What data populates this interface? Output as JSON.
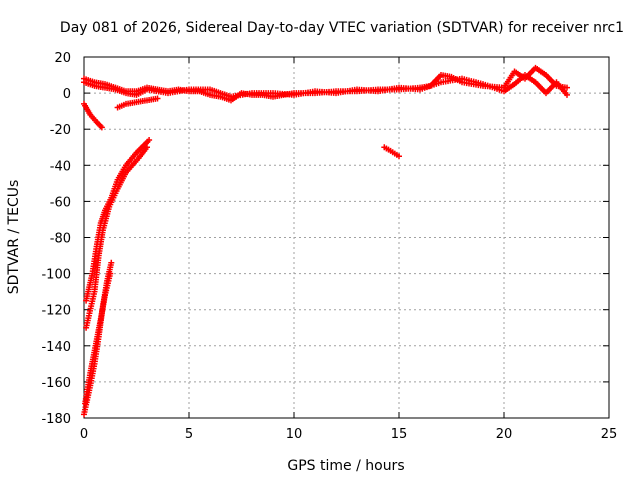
{
  "chart_data": {
    "type": "scatter",
    "title": "Day 081 of 2026, Sidereal Day-to-day VTEC variation (SDTVAR) for receiver nrc1",
    "xlabel": "GPS time / hours",
    "ylabel": "SDTVAR / TECUs",
    "xlim": [
      0,
      25
    ],
    "ylim": [
      -180,
      20
    ],
    "xticks": [
      0,
      5,
      10,
      15,
      20,
      25
    ],
    "yticks": [
      -180,
      -160,
      -140,
      -120,
      -100,
      -80,
      -60,
      -40,
      -20,
      0,
      20
    ],
    "grid": true,
    "marker": "plus",
    "series": [
      {
        "name": "SDTVAR",
        "color": "#ff0000",
        "segments": [
          [
            [
              0,
              8
            ],
            [
              0.5,
              6
            ],
            [
              1,
              5
            ],
            [
              1.5,
              3
            ],
            [
              2,
              1
            ],
            [
              2.5,
              1
            ],
            [
              3,
              3
            ],
            [
              3.5,
              2
            ],
            [
              4,
              1
            ],
            [
              4.5,
              2
            ],
            [
              5,
              1
            ],
            [
              5.5,
              1
            ],
            [
              6,
              -1
            ],
            [
              6.5,
              -2
            ],
            [
              7,
              -4
            ],
            [
              7.5,
              0
            ],
            [
              8,
              -1
            ],
            [
              8.5,
              -1
            ],
            [
              9,
              -2
            ],
            [
              9.5,
              -1
            ],
            [
              10,
              0
            ],
            [
              11,
              0
            ],
            [
              12,
              1
            ],
            [
              13,
              1
            ],
            [
              14,
              2
            ],
            [
              15,
              2
            ],
            [
              16,
              3
            ],
            [
              16.5,
              4
            ],
            [
              17,
              10
            ],
            [
              17.5,
              9
            ],
            [
              18,
              6
            ],
            [
              19,
              4
            ],
            [
              20,
              3
            ],
            [
              20.5,
              12
            ],
            [
              21,
              8
            ],
            [
              21.5,
              14
            ],
            [
              22,
              10
            ],
            [
              22.5,
              4
            ],
            [
              23,
              3
            ]
          ],
          [
            [
              0,
              6
            ],
            [
              0.5,
              4
            ],
            [
              1,
              3
            ],
            [
              1.5,
              2
            ],
            [
              2,
              0
            ],
            [
              2.5,
              -1
            ],
            [
              3,
              2
            ],
            [
              4,
              0
            ],
            [
              5,
              2
            ],
            [
              6,
              2
            ],
            [
              6.5,
              0
            ],
            [
              7,
              -2
            ],
            [
              8,
              0
            ],
            [
              9,
              0
            ],
            [
              10,
              -1
            ],
            [
              11,
              1
            ],
            [
              12,
              0
            ],
            [
              13,
              2
            ],
            [
              14,
              1
            ],
            [
              15,
              3
            ],
            [
              16,
              2
            ],
            [
              17,
              6
            ],
            [
              18,
              8
            ],
            [
              19,
              5
            ],
            [
              20,
              1
            ],
            [
              20.5,
              5
            ],
            [
              21,
              10
            ],
            [
              21.5,
              6
            ],
            [
              22,
              0
            ],
            [
              22.5,
              6
            ],
            [
              23,
              -1
            ]
          ],
          [
            [
              1.6,
              -8
            ],
            [
              2,
              -6
            ],
            [
              2.5,
              -5
            ],
            [
              3,
              -4
            ],
            [
              3.5,
              -3
            ]
          ],
          [
            [
              0,
              -6
            ],
            [
              0.3,
              -12
            ],
            [
              0.6,
              -16
            ],
            [
              0.85,
              -19
            ]
          ],
          [
            [
              14.3,
              -30
            ],
            [
              14.6,
              -32
            ],
            [
              15,
              -35
            ]
          ],
          [
            [
              0.1,
              -115
            ],
            [
              0.4,
              -100
            ],
            [
              0.6,
              -85
            ],
            [
              0.8,
              -72
            ],
            [
              1,
              -65
            ],
            [
              1.3,
              -58
            ],
            [
              1.6,
              -48
            ],
            [
              2,
              -40
            ],
            [
              2.5,
              -33
            ],
            [
              3.1,
              -26
            ]
          ],
          [
            [
              0.1,
              -130
            ],
            [
              0.5,
              -110
            ],
            [
              0.7,
              -90
            ],
            [
              0.9,
              -76
            ],
            [
              1.2,
              -63
            ],
            [
              1.6,
              -53
            ],
            [
              2,
              -44
            ],
            [
              2.6,
              -36
            ],
            [
              3,
              -30
            ]
          ],
          [
            [
              0,
              -178
            ],
            [
              0.3,
              -162
            ],
            [
              0.5,
              -150
            ],
            [
              0.7,
              -135
            ],
            [
              0.9,
              -118
            ],
            [
              1.1,
              -104
            ],
            [
              1.3,
              -94
            ]
          ],
          [
            [
              0.05,
              -172
            ],
            [
              0.3,
              -155
            ],
            [
              0.55,
              -140
            ],
            [
              0.8,
              -125
            ],
            [
              1,
              -112
            ],
            [
              1.25,
              -100
            ]
          ]
        ]
      }
    ]
  }
}
